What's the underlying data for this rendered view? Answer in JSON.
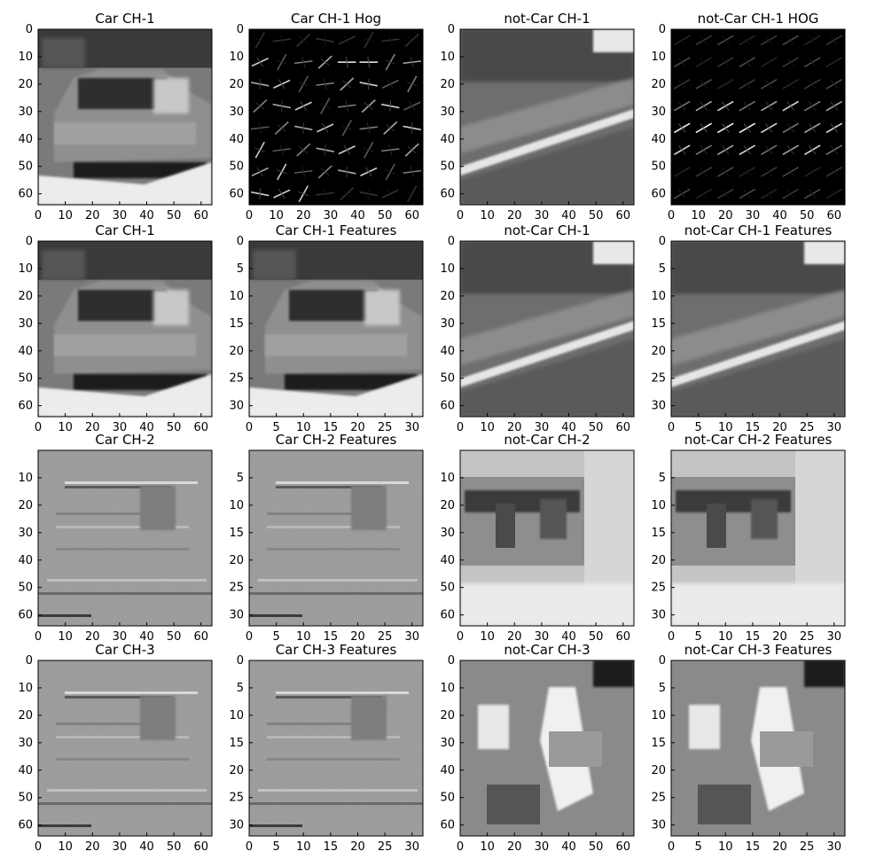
{
  "chart_data": [
    {
      "type": "heatmap",
      "title": "Car CH-1",
      "image": "car-grayscale",
      "xticks": [
        0,
        10,
        20,
        30,
        40,
        50,
        60
      ],
      "yticks": [
        0,
        10,
        20,
        30,
        40,
        50,
        60
      ],
      "xlim": [
        0,
        64
      ],
      "ylim": [
        64,
        0
      ]
    },
    {
      "type": "heatmap",
      "title": "Car CH-1 Hog",
      "image": "car-hog",
      "xticks": [
        0,
        10,
        20,
        30,
        40,
        50,
        60
      ],
      "yticks": [
        0,
        10,
        20,
        30,
        40,
        50,
        60
      ],
      "xlim": [
        0,
        64
      ],
      "ylim": [
        64,
        0
      ]
    },
    {
      "type": "heatmap",
      "title": "not-Car CH-1",
      "image": "road-grayscale",
      "xticks": [
        0,
        10,
        20,
        30,
        40,
        50,
        60
      ],
      "yticks": [
        0,
        10,
        20,
        30,
        40,
        50,
        60
      ],
      "xlim": [
        0,
        64
      ],
      "ylim": [
        64,
        0
      ]
    },
    {
      "type": "heatmap",
      "title": "not-Car CH-1 HOG",
      "image": "road-hog",
      "xticks": [
        0,
        10,
        20,
        30,
        40,
        50,
        60
      ],
      "yticks": [
        0,
        10,
        20,
        30,
        40,
        50,
        60
      ],
      "xlim": [
        0,
        64
      ],
      "ylim": [
        64,
        0
      ]
    },
    {
      "type": "heatmap",
      "title": "Car CH-1",
      "image": "car-grayscale",
      "xticks": [
        0,
        10,
        20,
        30,
        40,
        50,
        60
      ],
      "yticks": [
        0,
        10,
        20,
        30,
        40,
        50,
        60
      ],
      "xlim": [
        0,
        64
      ],
      "ylim": [
        64,
        0
      ]
    },
    {
      "type": "heatmap",
      "title": "Car CH-1 Features",
      "image": "car-grayscale",
      "xticks": [
        0,
        5,
        10,
        15,
        20,
        25,
        30
      ],
      "yticks": [
        0,
        5,
        10,
        15,
        20,
        25,
        30
      ],
      "xlim": [
        0,
        32
      ],
      "ylim": [
        32,
        0
      ]
    },
    {
      "type": "heatmap",
      "title": "not-Car CH-1",
      "image": "road-grayscale",
      "xticks": [
        0,
        10,
        20,
        30,
        40,
        50,
        60
      ],
      "yticks": [
        0,
        10,
        20,
        30,
        40,
        50,
        60
      ],
      "xlim": [
        0,
        64
      ],
      "ylim": [
        64,
        0
      ]
    },
    {
      "type": "heatmap",
      "title": "not-Car CH-1 Features",
      "image": "road-grayscale",
      "xticks": [
        0,
        5,
        10,
        15,
        20,
        25,
        30
      ],
      "yticks": [
        0,
        5,
        10,
        15,
        20,
        25,
        30
      ],
      "xlim": [
        0,
        32
      ],
      "ylim": [
        32,
        0
      ]
    },
    {
      "type": "heatmap",
      "title": "Car CH-2",
      "image": "car-chroma",
      "xticks": [
        0,
        10,
        20,
        30,
        40,
        50,
        60
      ],
      "yticks": [
        10,
        20,
        30,
        40,
        50,
        60
      ],
      "xlim": [
        0,
        64
      ],
      "ylim": [
        64,
        0
      ]
    },
    {
      "type": "heatmap",
      "title": "Car CH-2 Features",
      "image": "car-chroma",
      "xticks": [
        0,
        5,
        10,
        15,
        20,
        25,
        30
      ],
      "yticks": [
        5,
        10,
        15,
        20,
        25,
        30
      ],
      "xlim": [
        0,
        32
      ],
      "ylim": [
        32,
        0
      ]
    },
    {
      "type": "heatmap",
      "title": "not-Car CH-2",
      "image": "road-chroma-2",
      "xticks": [
        0,
        10,
        20,
        30,
        40,
        50,
        60
      ],
      "yticks": [
        10,
        20,
        30,
        40,
        50,
        60
      ],
      "xlim": [
        0,
        64
      ],
      "ylim": [
        64,
        0
      ]
    },
    {
      "type": "heatmap",
      "title": "not-Car CH-2 Features",
      "image": "road-chroma-2",
      "xticks": [
        0,
        5,
        10,
        15,
        20,
        25,
        30
      ],
      "yticks": [
        5,
        10,
        15,
        20,
        25,
        30
      ],
      "xlim": [
        0,
        32
      ],
      "ylim": [
        32,
        0
      ]
    },
    {
      "type": "heatmap",
      "title": "Car CH-3",
      "image": "car-chroma",
      "xticks": [
        0,
        10,
        20,
        30,
        40,
        50,
        60
      ],
      "yticks": [
        0,
        10,
        20,
        30,
        40,
        50,
        60
      ],
      "xlim": [
        0,
        64
      ],
      "ylim": [
        64,
        0
      ]
    },
    {
      "type": "heatmap",
      "title": "Car CH-3 Features",
      "image": "car-chroma",
      "xticks": [
        0,
        5,
        10,
        15,
        20,
        25,
        30
      ],
      "yticks": [
        0,
        5,
        10,
        15,
        20,
        25,
        30
      ],
      "xlim": [
        0,
        32
      ],
      "ylim": [
        32,
        0
      ]
    },
    {
      "type": "heatmap",
      "title": "not-Car CH-3",
      "image": "road-chroma-3",
      "xticks": [
        0,
        10,
        20,
        30,
        40,
        50,
        60
      ],
      "yticks": [
        0,
        10,
        20,
        30,
        40,
        50,
        60
      ],
      "xlim": [
        0,
        64
      ],
      "ylim": [
        64,
        0
      ]
    },
    {
      "type": "heatmap",
      "title": "not-Car CH-3 Features",
      "image": "road-chroma-3",
      "xticks": [
        0,
        5,
        10,
        15,
        20,
        25,
        30
      ],
      "yticks": [
        0,
        5,
        10,
        15,
        20,
        25,
        30
      ],
      "xlim": [
        0,
        32
      ],
      "ylim": [
        32,
        0
      ]
    }
  ],
  "colors": {
    "background": "#ffffff",
    "axis": "#000000",
    "text": "#000000"
  }
}
